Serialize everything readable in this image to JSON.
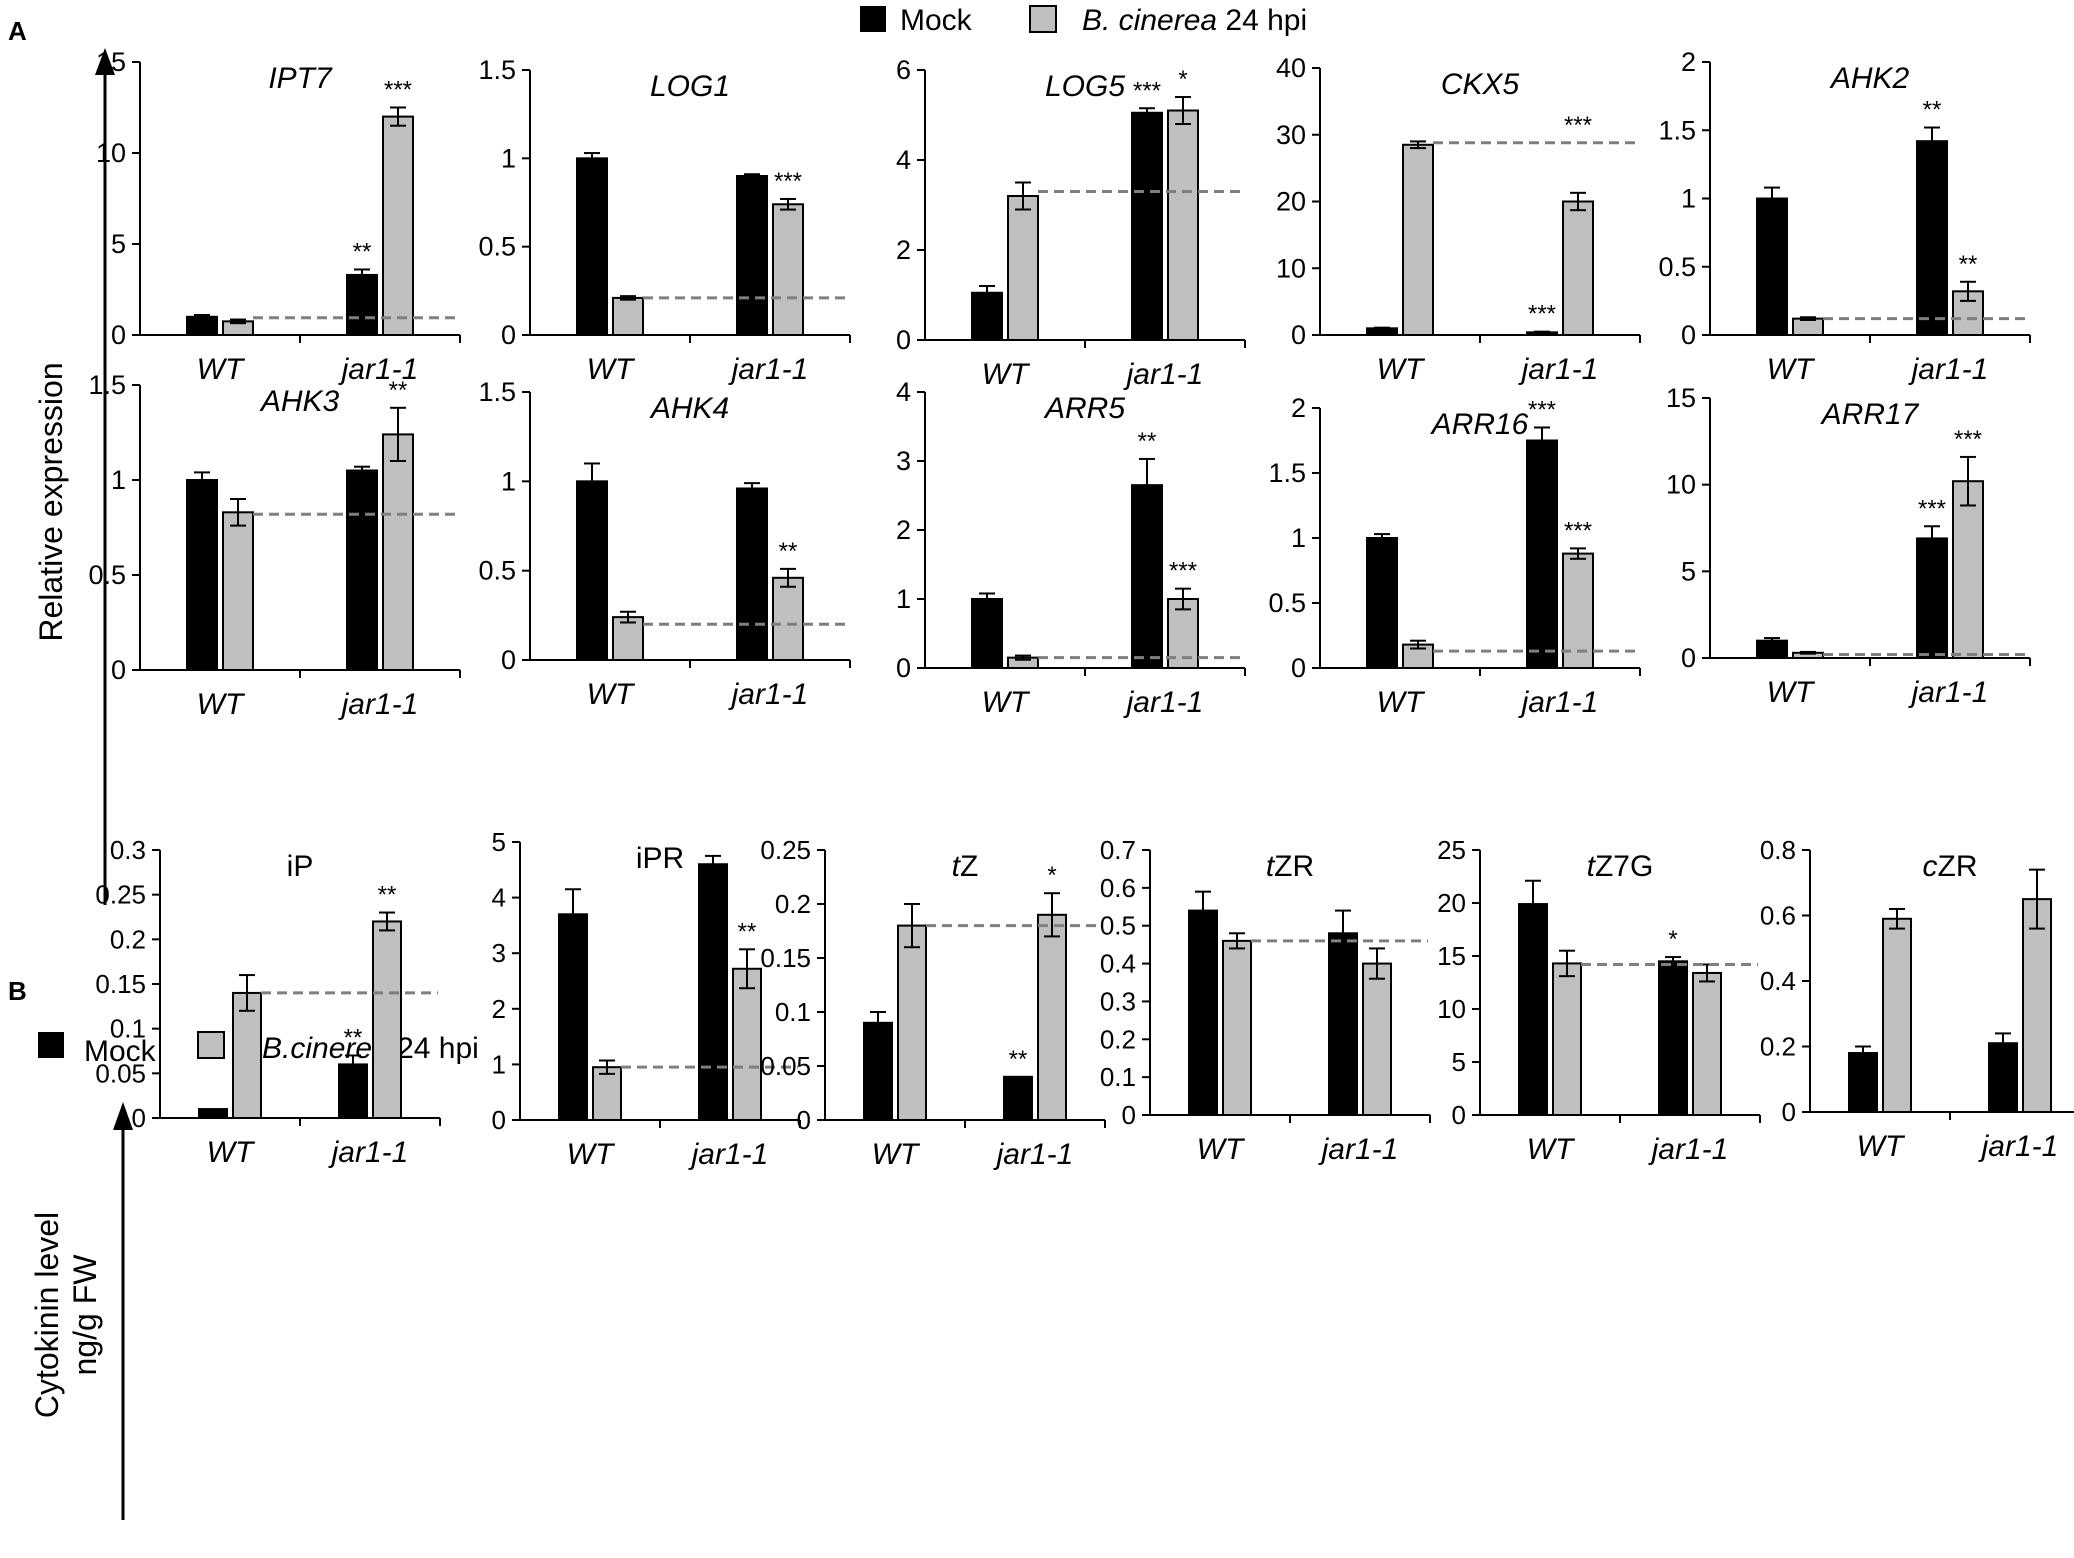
{
  "panel_labels": {
    "a": "A",
    "b": "B"
  },
  "colors": {
    "mock": "#000000",
    "infected": "#bfbfbf",
    "dashed": "#7f7f7f",
    "axis": "#000000"
  },
  "legend_a": {
    "mock": "Mock",
    "infected_species": "B. cinerea",
    "infected_time": " 24 hpi"
  },
  "legend_b": {
    "mock": "Mock",
    "infected_species": "B.cinerea",
    "infected_time": " 24 hpi"
  },
  "y_label_a": "Relative expression",
  "y_label_b_line1": "Cytokinin level",
  "y_label_b_line2": "ng/g FW",
  "chart_data": [
    {
      "type": "bar",
      "panel": "A",
      "title": "IPT7",
      "title_italic": true,
      "categories": [
        "WT",
        "jar1-1"
      ],
      "series": [
        {
          "name": "Mock",
          "values": [
            1.0,
            3.3
          ],
          "errors": [
            0.1,
            0.3
          ]
        },
        {
          "name": "B. cinerea 24 hpi",
          "values": [
            0.75,
            12.0
          ],
          "errors": [
            0.1,
            0.5
          ]
        }
      ],
      "ylim": [
        0,
        15
      ],
      "yticks": [
        0,
        5,
        10,
        15
      ],
      "dashed_line": 0.95,
      "annotations": [
        {
          "series": 0,
          "category": 1,
          "text": "**"
        },
        {
          "series": 1,
          "category": 1,
          "text": "***"
        }
      ]
    },
    {
      "type": "bar",
      "panel": "A",
      "title": "LOG1",
      "title_italic": true,
      "categories": [
        "WT",
        "jar1-1"
      ],
      "series": [
        {
          "name": "Mock",
          "values": [
            1.0,
            0.9
          ],
          "errors": [
            0.03,
            0.01
          ]
        },
        {
          "name": "B. cinerea 24 hpi",
          "values": [
            0.21,
            0.74
          ],
          "errors": [
            0.01,
            0.03
          ]
        }
      ],
      "ylim": [
        0,
        1.5
      ],
      "yticks": [
        0,
        0.5,
        1,
        1.5
      ],
      "dashed_line": 0.21,
      "annotations": [
        {
          "series": 1,
          "category": 1,
          "text": "***"
        }
      ]
    },
    {
      "type": "bar",
      "panel": "A",
      "title": "LOG5",
      "title_italic": true,
      "categories": [
        "WT",
        "jar1-1"
      ],
      "series": [
        {
          "name": "Mock",
          "values": [
            1.05,
            5.05
          ],
          "errors": [
            0.15,
            0.1
          ]
        },
        {
          "name": "B. cinerea 24 hpi",
          "values": [
            3.2,
            5.1
          ],
          "errors": [
            0.3,
            0.3
          ]
        }
      ],
      "ylim": [
        0,
        6
      ],
      "yticks": [
        0,
        2,
        4,
        6
      ],
      "dashed_line": 3.3,
      "annotations": [
        {
          "series": 0,
          "category": 1,
          "text": "***"
        },
        {
          "series": 1,
          "category": 1,
          "text": "*"
        }
      ]
    },
    {
      "type": "bar",
      "panel": "A",
      "title": "CKX5",
      "title_italic": true,
      "categories": [
        "WT",
        "jar1-1"
      ],
      "series": [
        {
          "name": "Mock",
          "values": [
            1.0,
            0.4
          ],
          "errors": [
            0.1,
            0.1
          ]
        },
        {
          "name": "B. cinerea 24 hpi",
          "values": [
            28.5,
            20.0
          ],
          "errors": [
            0.5,
            1.3
          ]
        }
      ],
      "ylim": [
        0,
        40
      ],
      "yticks": [
        0,
        10,
        20,
        30,
        40
      ],
      "dashed_line": 28.8,
      "annotations": [
        {
          "series": 0,
          "category": 1,
          "text": "***"
        },
        {
          "series": 1,
          "category": 1,
          "text": "***",
          "above_dashed": true
        }
      ]
    },
    {
      "type": "bar",
      "panel": "A",
      "title": "AHK2",
      "title_italic": true,
      "categories": [
        "WT",
        "jar1-1"
      ],
      "series": [
        {
          "name": "Mock",
          "values": [
            1.0,
            1.42
          ],
          "errors": [
            0.08,
            0.1
          ]
        },
        {
          "name": "B. cinerea 24 hpi",
          "values": [
            0.12,
            0.32
          ],
          "errors": [
            0.01,
            0.07
          ]
        }
      ],
      "ylim": [
        0,
        2
      ],
      "yticks": [
        0,
        0.5,
        1,
        1.5,
        2
      ],
      "dashed_line": 0.12,
      "annotations": [
        {
          "series": 0,
          "category": 1,
          "text": "**"
        },
        {
          "series": 1,
          "category": 1,
          "text": "**"
        }
      ]
    },
    {
      "type": "bar",
      "panel": "A",
      "title": "AHK3",
      "title_italic": true,
      "categories": [
        "WT",
        "jar1-1"
      ],
      "series": [
        {
          "name": "Mock",
          "values": [
            1.0,
            1.05
          ],
          "errors": [
            0.04,
            0.02
          ]
        },
        {
          "name": "B. cinerea 24 hpi",
          "values": [
            0.83,
            1.24
          ],
          "errors": [
            0.07,
            0.14
          ]
        }
      ],
      "ylim": [
        0,
        1.5
      ],
      "yticks": [
        0,
        0.5,
        1,
        1.5
      ],
      "dashed_line": 0.82,
      "annotations": [
        {
          "series": 1,
          "category": 1,
          "text": "**"
        }
      ]
    },
    {
      "type": "bar",
      "panel": "A",
      "title": "AHK4",
      "title_italic": true,
      "categories": [
        "WT",
        "jar1-1"
      ],
      "series": [
        {
          "name": "Mock",
          "values": [
            1.0,
            0.96
          ],
          "errors": [
            0.1,
            0.03
          ]
        },
        {
          "name": "B. cinerea 24 hpi",
          "values": [
            0.24,
            0.46
          ],
          "errors": [
            0.03,
            0.05
          ]
        }
      ],
      "ylim": [
        0,
        1.5
      ],
      "yticks": [
        0,
        0.5,
        1,
        1.5
      ],
      "dashed_line": 0.2,
      "annotations": [
        {
          "series": 1,
          "category": 1,
          "text": "**"
        }
      ]
    },
    {
      "type": "bar",
      "panel": "A",
      "title": "ARR5",
      "title_italic": true,
      "categories": [
        "WT",
        "jar1-1"
      ],
      "series": [
        {
          "name": "Mock",
          "values": [
            1.0,
            2.65
          ],
          "errors": [
            0.08,
            0.38
          ]
        },
        {
          "name": "B. cinerea 24 hpi",
          "values": [
            0.15,
            1.0
          ],
          "errors": [
            0.03,
            0.15
          ]
        }
      ],
      "ylim": [
        0,
        4
      ],
      "yticks": [
        0,
        1,
        2,
        3,
        4
      ],
      "dashed_line": 0.15,
      "annotations": [
        {
          "series": 0,
          "category": 1,
          "text": "**"
        },
        {
          "series": 1,
          "category": 1,
          "text": "***"
        }
      ]
    },
    {
      "type": "bar",
      "panel": "A",
      "title": "ARR16",
      "title_italic": true,
      "categories": [
        "WT",
        "jar1-1"
      ],
      "series": [
        {
          "name": "Mock",
          "values": [
            1.0,
            1.75
          ],
          "errors": [
            0.03,
            0.1
          ]
        },
        {
          "name": "B. cinerea 24 hpi",
          "values": [
            0.18,
            0.88
          ],
          "errors": [
            0.03,
            0.04
          ]
        }
      ],
      "ylim": [
        0,
        2
      ],
      "yticks": [
        0,
        0.5,
        1,
        1.5,
        2
      ],
      "dashed_line": 0.13,
      "annotations": [
        {
          "series": 0,
          "category": 1,
          "text": "***"
        },
        {
          "series": 1,
          "category": 1,
          "text": "***"
        }
      ]
    },
    {
      "type": "bar",
      "panel": "A",
      "title": "ARR17",
      "title_italic": true,
      "categories": [
        "WT",
        "jar1-1"
      ],
      "series": [
        {
          "name": "Mock",
          "values": [
            1.0,
            6.9
          ],
          "errors": [
            0.15,
            0.7
          ]
        },
        {
          "name": "B. cinerea 24 hpi",
          "values": [
            0.3,
            10.2
          ],
          "errors": [
            0.05,
            1.4
          ]
        }
      ],
      "ylim": [
        0,
        15
      ],
      "yticks": [
        0,
        5,
        10,
        15
      ],
      "dashed_line": 0.2,
      "annotations": [
        {
          "series": 0,
          "category": 1,
          "text": "***"
        },
        {
          "series": 1,
          "category": 1,
          "text": "***"
        }
      ]
    },
    {
      "type": "bar",
      "panel": "B",
      "title": "iP",
      "title_parts": [
        {
          "t": "iP",
          "i": false
        }
      ],
      "categories": [
        "WT",
        "jar1-1"
      ],
      "series": [
        {
          "name": "Mock",
          "values": [
            0.01,
            0.06
          ],
          "errors": [
            0.0,
            0.01
          ]
        },
        {
          "name": "B.cinerea 24 hpi",
          "values": [
            0.14,
            0.22
          ],
          "errors": [
            0.02,
            0.01
          ]
        }
      ],
      "ylim": [
        0,
        0.3
      ],
      "yticks": [
        0,
        0.05,
        0.1,
        0.15,
        0.2,
        0.25,
        0.3
      ],
      "dashed_line": 0.14,
      "annotations": [
        {
          "series": 0,
          "category": 1,
          "text": "**"
        },
        {
          "series": 1,
          "category": 1,
          "text": "**"
        }
      ]
    },
    {
      "type": "bar",
      "panel": "B",
      "title": "iPR",
      "title_parts": [
        {
          "t": "iPR",
          "i": false
        }
      ],
      "categories": [
        "WT",
        "jar1-1"
      ],
      "series": [
        {
          "name": "Mock",
          "values": [
            3.7,
            4.6
          ],
          "errors": [
            0.45,
            0.15
          ]
        },
        {
          "name": "B.cinerea 24 hpi",
          "values": [
            0.95,
            2.72
          ],
          "errors": [
            0.12,
            0.35
          ]
        }
      ],
      "ylim": [
        0,
        5
      ],
      "yticks": [
        0,
        1,
        2,
        3,
        4,
        5
      ],
      "dashed_line": 0.95,
      "annotations": [
        {
          "series": 1,
          "category": 1,
          "text": "**"
        }
      ]
    },
    {
      "type": "bar",
      "panel": "B",
      "title": "tZ",
      "title_parts": [
        {
          "t": "t",
          "i": true
        },
        {
          "t": "Z",
          "i": false
        }
      ],
      "categories": [
        "WT",
        "jar1-1"
      ],
      "series": [
        {
          "name": "Mock",
          "values": [
            0.09,
            0.04
          ],
          "errors": [
            0.01,
            0.0
          ]
        },
        {
          "name": "B.cinerea 24 hpi",
          "values": [
            0.18,
            0.19
          ],
          "errors": [
            0.02,
            0.02
          ]
        }
      ],
      "ylim": [
        0,
        0.25
      ],
      "yticks": [
        0,
        0.05,
        0.1,
        0.15,
        0.2,
        0.25
      ],
      "dashed_line": 0.18,
      "annotations": [
        {
          "series": 0,
          "category": 1,
          "text": "**"
        },
        {
          "series": 1,
          "category": 1,
          "text": "*"
        }
      ]
    },
    {
      "type": "bar",
      "panel": "B",
      "title": "tZR",
      "title_parts": [
        {
          "t": "t",
          "i": true
        },
        {
          "t": "ZR",
          "i": false
        }
      ],
      "categories": [
        "WT",
        "jar1-1"
      ],
      "series": [
        {
          "name": "Mock",
          "values": [
            0.54,
            0.48
          ],
          "errors": [
            0.05,
            0.06
          ]
        },
        {
          "name": "B.cinerea 24 hpi",
          "values": [
            0.46,
            0.4
          ],
          "errors": [
            0.02,
            0.04
          ]
        }
      ],
      "ylim": [
        0,
        0.7
      ],
      "yticks": [
        0,
        0.1,
        0.2,
        0.3,
        0.4,
        0.5,
        0.6,
        0.7
      ],
      "dashed_line": 0.46,
      "annotations": []
    },
    {
      "type": "bar",
      "panel": "B",
      "title": "tZ7G",
      "title_parts": [
        {
          "t": "t",
          "i": true
        },
        {
          "t": "Z7G",
          "i": false
        }
      ],
      "categories": [
        "WT",
        "jar1-1"
      ],
      "series": [
        {
          "name": "Mock",
          "values": [
            19.9,
            14.5
          ],
          "errors": [
            2.2,
            0.4
          ]
        },
        {
          "name": "B.cinerea 24 hpi",
          "values": [
            14.3,
            13.4
          ],
          "errors": [
            1.2,
            0.8
          ]
        }
      ],
      "ylim": [
        0,
        25
      ],
      "yticks": [
        0,
        5,
        10,
        15,
        20,
        25
      ],
      "dashed_line": 14.2,
      "annotations": [
        {
          "series": 0,
          "category": 1,
          "text": "*"
        }
      ]
    },
    {
      "type": "bar",
      "panel": "B",
      "title": "cZR",
      "title_parts": [
        {
          "t": "c",
          "i": true
        },
        {
          "t": "ZR",
          "i": false
        }
      ],
      "categories": [
        "WT",
        "jar1-1"
      ],
      "series": [
        {
          "name": "Mock",
          "values": [
            0.18,
            0.21
          ],
          "errors": [
            0.02,
            0.03
          ]
        },
        {
          "name": "B.cinerea 24 hpi",
          "values": [
            0.59,
            0.65
          ],
          "errors": [
            0.03,
            0.09
          ]
        }
      ],
      "ylim": [
        0,
        0.8
      ],
      "yticks": [
        0,
        0.2,
        0.4,
        0.6,
        0.8
      ],
      "dashed_line": null,
      "annotations": []
    }
  ]
}
